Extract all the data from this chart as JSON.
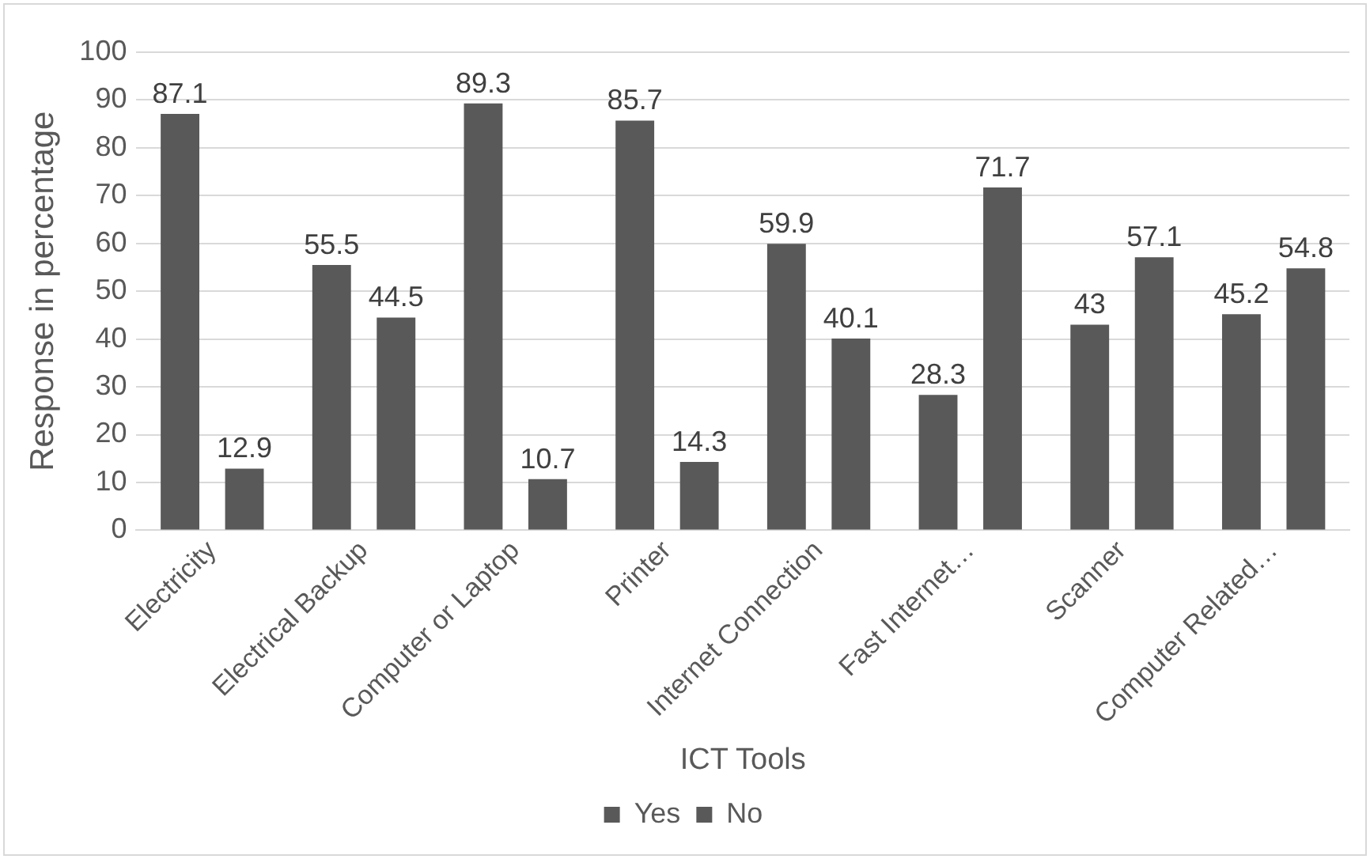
{
  "chart_data": {
    "type": "bar",
    "xlabel": "ICT Tools",
    "ylabel": "Response in percentage",
    "categories": [
      "Electricity",
      "Electrical Backup",
      "Computer or Laptop",
      "Printer",
      "Internet Connection",
      "Fast Internet…",
      "Scanner",
      "Computer Related…"
    ],
    "series": [
      {
        "name": "Yes",
        "color": "#595959",
        "values": [
          87.1,
          55.5,
          89.3,
          85.7,
          59.9,
          28.3,
          43,
          45.2
        ]
      },
      {
        "name": "No",
        "color": "#595959",
        "values": [
          12.9,
          44.5,
          10.7,
          14.3,
          40.1,
          71.7,
          57.1,
          54.8
        ]
      }
    ],
    "ylim": [
      0,
      100
    ],
    "yticks": [
      0,
      10,
      20,
      30,
      40,
      50,
      60,
      70,
      80,
      90,
      100
    ],
    "grid": "y",
    "legend": "bottom",
    "data_labels": true
  }
}
